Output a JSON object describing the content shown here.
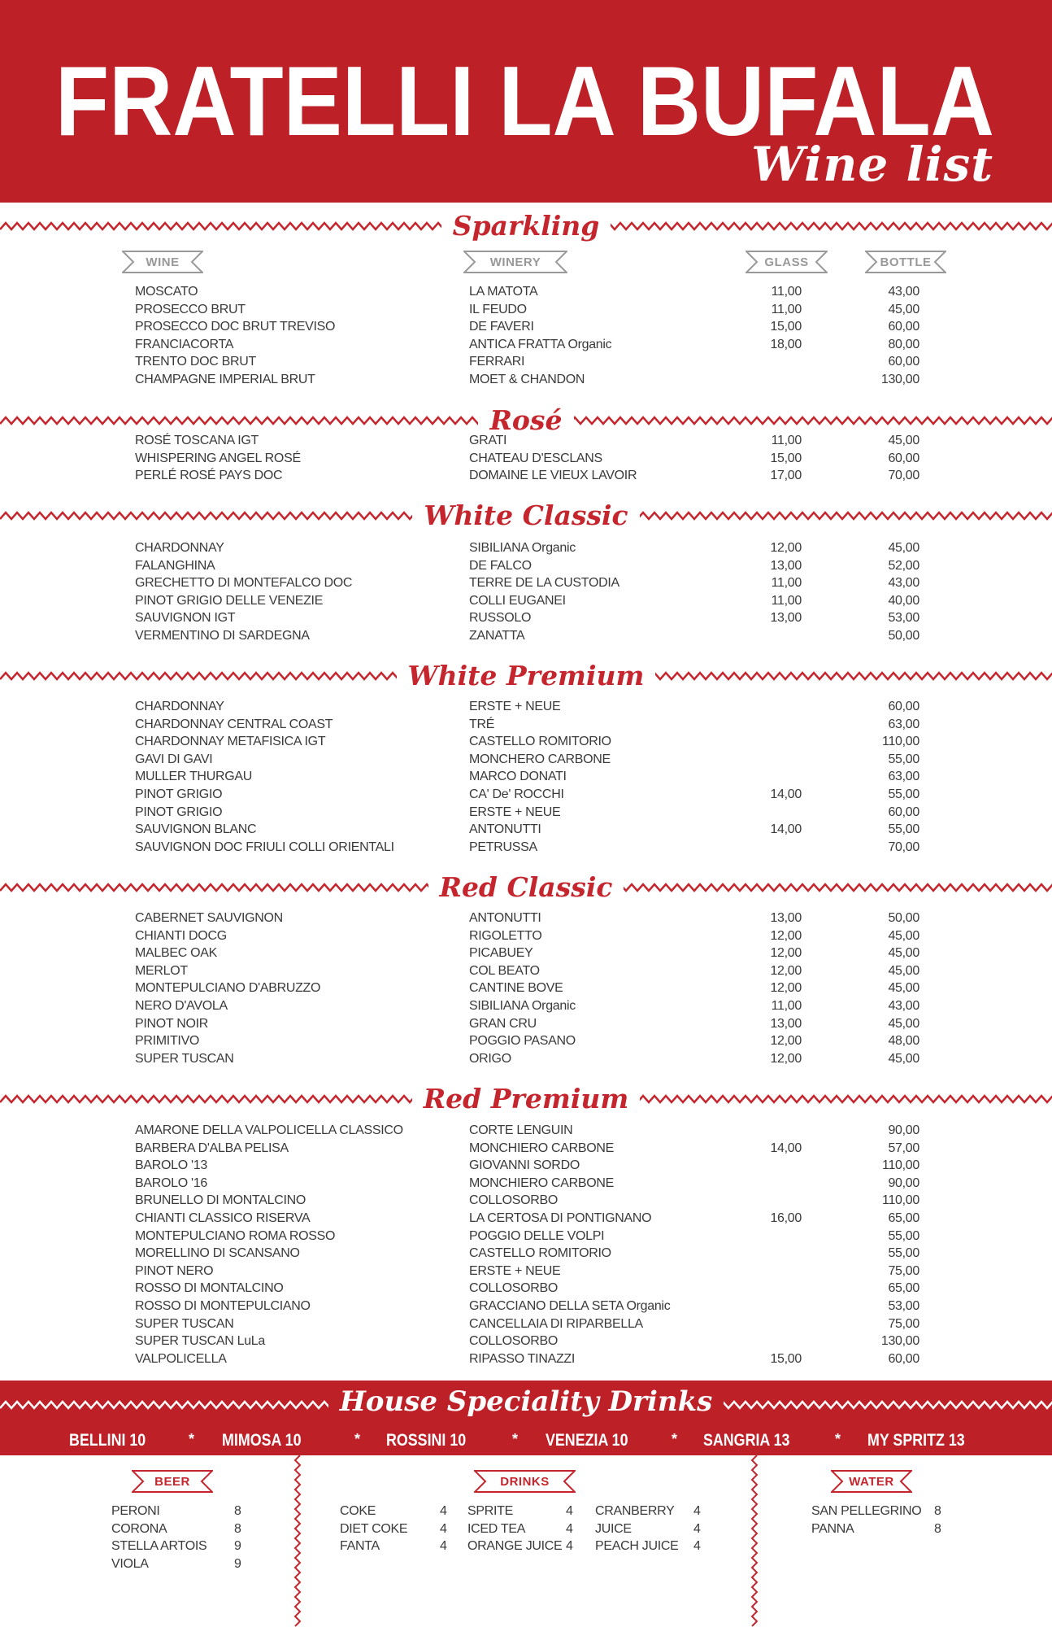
{
  "header": {
    "title": "FRATELLI LA BUFALA",
    "subtitle": "Wine list"
  },
  "columns": {
    "wine": "WINE",
    "winery": "WINERY",
    "glass": "GLASS",
    "bottle": "BOTTLE"
  },
  "sections": [
    {
      "title": "Sparkling",
      "rows": [
        [
          "MOSCATO",
          "LA MATOTA",
          "11,00",
          "43,00"
        ],
        [
          "PROSECCO BRUT",
          "IL FEUDO",
          "11,00",
          "45,00"
        ],
        [
          "PROSECCO DOC BRUT TREVISO",
          "DE FAVERI",
          "15,00",
          "60,00"
        ],
        [
          "FRANCIACORTA",
          "ANTICA FRATTA Organic",
          "18,00",
          "80,00"
        ],
        [
          "TRENTO DOC BRUT",
          "FERRARI",
          "",
          "60,00"
        ],
        [
          "CHAMPAGNE IMPERIAL BRUT",
          "MOET & CHANDON",
          "",
          "130,00"
        ]
      ]
    },
    {
      "title": "Rosé",
      "rows": [
        [
          "ROSÉ TOSCANA IGT",
          "GRATI",
          "11,00",
          "45,00"
        ],
        [
          "WHISPERING ANGEL ROSÉ",
          "CHATEAU D'ESCLANS",
          "15,00",
          "60,00"
        ],
        [
          "PERLÉ ROSÉ PAYS DOC",
          "DOMAINE LE VIEUX LAVOIR",
          "17,00",
          "70,00"
        ]
      ]
    },
    {
      "title": "White Classic",
      "rows": [
        [
          "CHARDONNAY",
          "SIBILIANA Organic",
          "12,00",
          "45,00"
        ],
        [
          "FALANGHINA",
          "DE FALCO",
          "13,00",
          "52,00"
        ],
        [
          "GRECHETTO DI MONTEFALCO DOC",
          "TERRE DE LA CUSTODIA",
          "11,00",
          "43,00"
        ],
        [
          "PINOT GRIGIO DELLE VENEZIE",
          "COLLI EUGANEI",
          "11,00",
          "40,00"
        ],
        [
          "SAUVIGNON IGT",
          "RUSSOLO",
          "13,00",
          "53,00"
        ],
        [
          "VERMENTINO DI SARDEGNA",
          "ZANATTA",
          "",
          "50,00"
        ]
      ]
    },
    {
      "title": "White Premium",
      "rows": [
        [
          "CHARDONNAY",
          "ERSTE + NEUE",
          "",
          "60,00"
        ],
        [
          "CHARDONNAY CENTRAL COAST",
          "TRÉ",
          "",
          "63,00"
        ],
        [
          "CHARDONNAY METAFISICA IGT",
          "CASTELLO ROMITORIO",
          "",
          "110,00"
        ],
        [
          "GAVI DI GAVI",
          "MONCHERO CARBONE",
          "",
          "55,00"
        ],
        [
          "MULLER THURGAU",
          "MARCO DONATI",
          "",
          "63,00"
        ],
        [
          "PINOT GRIGIO",
          "CA' De' ROCCHI",
          "14,00",
          "55,00"
        ],
        [
          "PINOT GRIGIO",
          "ERSTE + NEUE",
          "",
          "60,00"
        ],
        [
          "SAUVIGNON BLANC",
          "ANTONUTTI",
          "14,00",
          "55,00"
        ],
        [
          "SAUVIGNON DOC FRIULI COLLI ORIENTALI",
          "PETRUSSA",
          "",
          "70,00"
        ]
      ]
    },
    {
      "title": "Red Classic",
      "rows": [
        [
          "CABERNET SAUVIGNON",
          "ANTONUTTI",
          "13,00",
          "50,00"
        ],
        [
          "CHIANTI DOCG",
          "RIGOLETTO",
          "12,00",
          "45,00"
        ],
        [
          "MALBEC OAK",
          "PICABUEY",
          "12,00",
          "45,00"
        ],
        [
          "MERLOT",
          "COL BEATO",
          "12,00",
          "45,00"
        ],
        [
          "MONTEPULCIANO D'ABRUZZO",
          "CANTINE BOVE",
          "12,00",
          "45,00"
        ],
        [
          "NERO D'AVOLA",
          "SIBILIANA Organic",
          "11,00",
          "43,00"
        ],
        [
          "PINOT NOIR",
          "GRAN CRU",
          "13,00",
          "45,00"
        ],
        [
          "PRIMITIVO",
          "POGGIO PASANO",
          "12,00",
          "48,00"
        ],
        [
          "SUPER TUSCAN",
          "ORIGO",
          "12,00",
          "45,00"
        ]
      ]
    },
    {
      "title": "Red Premium",
      "rows": [
        [
          "AMARONE DELLA VALPOLICELLA CLASSICO",
          "CORTE LENGUIN",
          "",
          "90,00"
        ],
        [
          "BARBERA D'ALBA PELISA",
          "MONCHIERO CARBONE",
          "14,00",
          "57,00"
        ],
        [
          "BAROLO '13",
          "GIOVANNI SORDO",
          "",
          "110,00"
        ],
        [
          "BAROLO '16",
          "MONCHIERO CARBONE",
          "",
          "90,00"
        ],
        [
          "BRUNELLO DI MONTALCINO",
          "COLLOSORBO",
          "",
          "110,00"
        ],
        [
          "CHIANTI CLASSICO RISERVA",
          "LA CERTOSA DI PONTIGNANO",
          "16,00",
          "65,00"
        ],
        [
          "MONTEPULCIANO ROMA ROSSO",
          "POGGIO DELLE VOLPI",
          "",
          "55,00"
        ],
        [
          "MORELLINO DI SCANSANO",
          "CASTELLO ROMITORIO",
          "",
          "55,00"
        ],
        [
          "PINOT NERO",
          "ERSTE + NEUE",
          "",
          "75,00"
        ],
        [
          "ROSSO DI MONTALCINO",
          "COLLOSORBO",
          "",
          "65,00"
        ],
        [
          "ROSSO DI MONTEPULCIANO",
          "GRACCIANO DELLA SETA Organic",
          "",
          "53,00"
        ],
        [
          "SUPER TUSCAN",
          "CANCELLAIA DI RIPARBELLA",
          "",
          "75,00"
        ],
        [
          "SUPER TUSCAN LuLa",
          "COLLOSORBO",
          "",
          "130,00"
        ],
        [
          "VALPOLICELLA",
          "RIPASSO TINAZZI",
          "15,00",
          "60,00"
        ]
      ]
    }
  ],
  "house": {
    "title": "House Speciality Drinks",
    "separator": "*",
    "drinks": [
      "BELLINI 10",
      "MIMOSA 10",
      "ROSSINI 10",
      "VENEZIA 10",
      "SANGRIA 13",
      "MY SPRITZ 13"
    ]
  },
  "beer": {
    "label": "BEER",
    "items": [
      [
        "PERONI",
        "8"
      ],
      [
        "CORONA",
        "8"
      ],
      [
        "STELLA ARTOIS",
        "9"
      ],
      [
        "VIOLA",
        "9"
      ]
    ]
  },
  "drinks": {
    "label": "DRINKS",
    "columns": [
      [
        [
          "COKE",
          "4"
        ],
        [
          "DIET COKE",
          "4"
        ],
        [
          "FANTA",
          "4"
        ]
      ],
      [
        [
          "SPRITE",
          "4"
        ],
        [
          "ICED TEA",
          "4"
        ],
        [
          "ORANGE JUICE",
          "4"
        ]
      ],
      [
        [
          "CRANBERRY",
          "4"
        ],
        [
          "JUICE",
          "4"
        ],
        [
          "PEACH JUICE",
          "4"
        ]
      ]
    ]
  },
  "water": {
    "label": "WATER",
    "items": [
      [
        "SAN PELLEGRINO",
        "8"
      ],
      [
        "PANNA",
        "8"
      ]
    ]
  },
  "colors": {
    "brand_red": "#bd2027",
    "text": "#3a3a3a",
    "badge_gray": "#999999"
  }
}
